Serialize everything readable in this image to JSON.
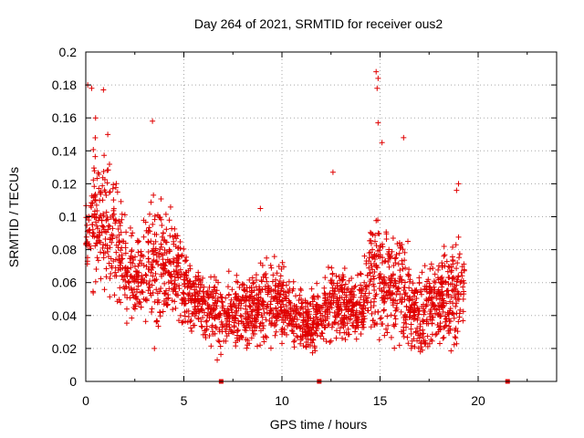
{
  "chart_data": {
    "type": "scatter",
    "title": "Day 264 of 2021, SRMTID for receiver ous2",
    "xlabel": "GPS time / hours",
    "ylabel": "SRMTID / TECUs",
    "xlim": [
      0,
      24
    ],
    "ylim": [
      0,
      0.2
    ],
    "x_ticks": [
      0,
      5,
      10,
      15,
      20
    ],
    "x_tick_labels": [
      "0",
      "5",
      "10",
      "15",
      "20"
    ],
    "y_ticks": [
      0,
      0.02,
      0.04,
      0.06,
      0.08,
      0.1,
      0.12,
      0.14,
      0.16,
      0.18,
      0.2
    ],
    "y_tick_labels": [
      "0",
      "0.02",
      "0.04",
      "0.06",
      "0.08",
      "0.1",
      "0.12",
      "0.14",
      "0.16",
      "0.18",
      "0.2"
    ],
    "grid": true,
    "marker": "+",
    "color": "#e00000",
    "activity_envelope": [
      {
        "t": 0.0,
        "lo": 0.06,
        "hi": 0.12
      },
      {
        "t": 0.5,
        "lo": 0.05,
        "hi": 0.175
      },
      {
        "t": 1.0,
        "lo": 0.04,
        "hi": 0.165
      },
      {
        "t": 1.5,
        "lo": 0.04,
        "hi": 0.155
      },
      {
        "t": 2.0,
        "lo": 0.035,
        "hi": 0.12
      },
      {
        "t": 2.5,
        "lo": 0.035,
        "hi": 0.1
      },
      {
        "t": 3.0,
        "lo": 0.035,
        "hi": 0.11
      },
      {
        "t": 3.5,
        "lo": 0.035,
        "hi": 0.13
      },
      {
        "t": 4.0,
        "lo": 0.025,
        "hi": 0.13
      },
      {
        "t": 4.5,
        "lo": 0.04,
        "hi": 0.12
      },
      {
        "t": 5.0,
        "lo": 0.03,
        "hi": 0.09
      },
      {
        "t": 5.5,
        "lo": 0.025,
        "hi": 0.08
      },
      {
        "t": 6.0,
        "lo": 0.025,
        "hi": 0.075
      },
      {
        "t": 6.5,
        "lo": 0.02,
        "hi": 0.075
      },
      {
        "t": 7.0,
        "lo": 0.015,
        "hi": 0.075
      },
      {
        "t": 7.5,
        "lo": 0.02,
        "hi": 0.075
      },
      {
        "t": 8.0,
        "lo": 0.02,
        "hi": 0.075
      },
      {
        "t": 8.5,
        "lo": 0.02,
        "hi": 0.075
      },
      {
        "t": 9.0,
        "lo": 0.02,
        "hi": 0.085
      },
      {
        "t": 9.5,
        "lo": 0.02,
        "hi": 0.085
      },
      {
        "t": 10.0,
        "lo": 0.02,
        "hi": 0.085
      },
      {
        "t": 10.5,
        "lo": 0.02,
        "hi": 0.07
      },
      {
        "t": 11.0,
        "lo": 0.015,
        "hi": 0.065
      },
      {
        "t": 11.5,
        "lo": 0.015,
        "hi": 0.065
      },
      {
        "t": 12.0,
        "lo": 0.02,
        "hi": 0.065
      },
      {
        "t": 12.5,
        "lo": 0.02,
        "hi": 0.085
      },
      {
        "t": 13.0,
        "lo": 0.025,
        "hi": 0.08
      },
      {
        "t": 13.5,
        "lo": 0.02,
        "hi": 0.075
      },
      {
        "t": 14.0,
        "lo": 0.02,
        "hi": 0.075
      },
      {
        "t": 14.5,
        "lo": 0.02,
        "hi": 0.12
      },
      {
        "t": 15.0,
        "lo": 0.02,
        "hi": 0.13
      },
      {
        "t": 15.5,
        "lo": 0.02,
        "hi": 0.11
      },
      {
        "t": 16.0,
        "lo": 0.02,
        "hi": 0.12
      },
      {
        "t": 16.5,
        "lo": 0.02,
        "hi": 0.085
      },
      {
        "t": 17.0,
        "lo": 0.015,
        "hi": 0.075
      },
      {
        "t": 17.5,
        "lo": 0.015,
        "hi": 0.085
      },
      {
        "t": 18.0,
        "lo": 0.02,
        "hi": 0.09
      },
      {
        "t": 18.5,
        "lo": 0.015,
        "hi": 0.1
      },
      {
        "t": 19.0,
        "lo": 0.02,
        "hi": 0.1
      },
      {
        "t": 19.3,
        "lo": 0.04,
        "hi": 0.09
      }
    ],
    "outliers": [
      {
        "x": 0.1,
        "y": 0.18
      },
      {
        "x": 0.3,
        "y": 0.178
      },
      {
        "x": 0.9,
        "y": 0.177
      },
      {
        "x": 3.4,
        "y": 0.158
      },
      {
        "x": 14.8,
        "y": 0.188
      },
      {
        "x": 14.9,
        "y": 0.184
      },
      {
        "x": 14.85,
        "y": 0.178
      },
      {
        "x": 14.9,
        "y": 0.157
      },
      {
        "x": 15.1,
        "y": 0.145
      },
      {
        "x": 16.2,
        "y": 0.148
      },
      {
        "x": 12.6,
        "y": 0.127
      },
      {
        "x": 19.0,
        "y": 0.12
      },
      {
        "x": 18.9,
        "y": 0.116
      },
      {
        "x": 8.9,
        "y": 0.105
      },
      {
        "x": 3.5,
        "y": 0.02
      },
      {
        "x": 6.7,
        "y": 0.013
      },
      {
        "x": 0.5,
        "y": 0.16
      }
    ],
    "zero_points": [
      {
        "x": 6.9,
        "y": 0
      },
      {
        "x": 11.9,
        "y": 0
      },
      {
        "x": 21.5,
        "y": 0
      }
    ]
  }
}
